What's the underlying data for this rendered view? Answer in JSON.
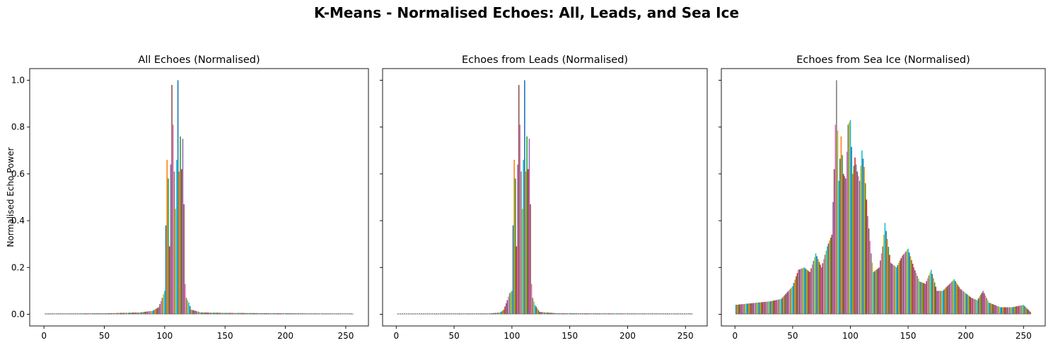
{
  "suptitle": "K-Means - Normalised Echoes: All, Leads, and Sea Ice",
  "ylabel": "Normalised Echo Power",
  "palette": [
    "#1f77b4",
    "#ff7f0e",
    "#2ca02c",
    "#d62728",
    "#9467bd",
    "#8c564b",
    "#e377c2",
    "#7f7f7f",
    "#bcbd22",
    "#17becf"
  ],
  "chart_data": [
    {
      "type": "line",
      "title": "All Echoes (Normalised)",
      "xlabel": "",
      "ylabel": "Normalised Echo Power",
      "xlim": [
        -11.8,
        268.8
      ],
      "ylim": [
        -0.05,
        1.05
      ],
      "xticks": [
        0,
        50,
        100,
        150,
        200,
        250
      ],
      "yticks": [
        0.0,
        0.2,
        0.4,
        0.6,
        0.8,
        1.0
      ],
      "grid": false,
      "x": [
        1,
        256
      ],
      "profile": [
        [
          0,
          0.002
        ],
        [
          50,
          0.004
        ],
        [
          80,
          0.008
        ],
        [
          90,
          0.015
        ],
        [
          95,
          0.03
        ],
        [
          98,
          0.07
        ],
        [
          100,
          0.1
        ],
        [
          102,
          0.66
        ],
        [
          103,
          0.58
        ],
        [
          104,
          0.29
        ],
        [
          105,
          0.64
        ],
        [
          106,
          0.98
        ],
        [
          107,
          0.81
        ],
        [
          108,
          0.61
        ],
        [
          109,
          0.45
        ],
        [
          110,
          0.66
        ],
        [
          111,
          1.0
        ],
        [
          112,
          0.61
        ],
        [
          113,
          0.76
        ],
        [
          114,
          0.62
        ],
        [
          115,
          0.75
        ],
        [
          116,
          0.47
        ],
        [
          117,
          0.13
        ],
        [
          118,
          0.07
        ],
        [
          120,
          0.05
        ],
        [
          122,
          0.02
        ],
        [
          130,
          0.008
        ],
        [
          150,
          0.006
        ],
        [
          200,
          0.004
        ],
        [
          256,
          0.002
        ]
      ]
    },
    {
      "type": "line",
      "title": "Echoes from Leads (Normalised)",
      "xlabel": "",
      "ylabel": "",
      "xlim": [
        -11.8,
        268.8
      ],
      "ylim": [
        -0.05,
        1.05
      ],
      "xticks": [
        0,
        50,
        100,
        150,
        200,
        250
      ],
      "yticks": [
        0.0,
        0.2,
        0.4,
        0.6,
        0.8,
        1.0
      ],
      "grid": false,
      "x": [
        1,
        256
      ],
      "profile": [
        [
          0,
          0.001
        ],
        [
          80,
          0.003
        ],
        [
          90,
          0.008
        ],
        [
          93,
          0.02
        ],
        [
          96,
          0.06
        ],
        [
          98,
          0.09
        ],
        [
          100,
          0.1
        ],
        [
          102,
          0.66
        ],
        [
          103,
          0.58
        ],
        [
          104,
          0.29
        ],
        [
          105,
          0.64
        ],
        [
          106,
          0.98
        ],
        [
          107,
          0.81
        ],
        [
          108,
          0.61
        ],
        [
          109,
          0.45
        ],
        [
          110,
          0.66
        ],
        [
          111,
          1.0
        ],
        [
          112,
          0.61
        ],
        [
          113,
          0.76
        ],
        [
          114,
          0.62
        ],
        [
          115,
          0.75
        ],
        [
          116,
          0.47
        ],
        [
          117,
          0.13
        ],
        [
          118,
          0.07
        ],
        [
          120,
          0.04
        ],
        [
          124,
          0.01
        ],
        [
          140,
          0.004
        ],
        [
          256,
          0.002
        ]
      ]
    },
    {
      "type": "line",
      "title": "Echoes from Sea Ice (Normalised)",
      "xlabel": "",
      "ylabel": "",
      "xlim": [
        -11.8,
        268.8
      ],
      "ylim": [
        -0.05,
        1.05
      ],
      "xticks": [
        0,
        50,
        100,
        150,
        200,
        250
      ],
      "yticks": [
        0.0,
        0.2,
        0.4,
        0.6,
        0.8,
        1.0
      ],
      "grid": false,
      "x": [
        1,
        256
      ],
      "profile": [
        [
          0,
          0.04
        ],
        [
          10,
          0.045
        ],
        [
          20,
          0.05
        ],
        [
          30,
          0.055
        ],
        [
          40,
          0.065
        ],
        [
          50,
          0.12
        ],
        [
          55,
          0.19
        ],
        [
          60,
          0.2
        ],
        [
          65,
          0.18
        ],
        [
          70,
          0.26
        ],
        [
          75,
          0.2
        ],
        [
          80,
          0.29
        ],
        [
          84,
          0.34
        ],
        [
          86,
          0.62
        ],
        [
          88,
          1.0
        ],
        [
          90,
          0.57
        ],
        [
          92,
          0.76
        ],
        [
          94,
          0.6
        ],
        [
          96,
          0.58
        ],
        [
          98,
          0.81
        ],
        [
          100,
          0.83
        ],
        [
          102,
          0.6
        ],
        [
          104,
          0.67
        ],
        [
          106,
          0.61
        ],
        [
          108,
          0.57
        ],
        [
          110,
          0.7
        ],
        [
          112,
          0.63
        ],
        [
          115,
          0.42
        ],
        [
          118,
          0.26
        ],
        [
          120,
          0.18
        ],
        [
          125,
          0.2
        ],
        [
          128,
          0.29
        ],
        [
          130,
          0.39
        ],
        [
          135,
          0.22
        ],
        [
          140,
          0.2
        ],
        [
          145,
          0.25
        ],
        [
          150,
          0.28
        ],
        [
          155,
          0.2
        ],
        [
          160,
          0.14
        ],
        [
          165,
          0.13
        ],
        [
          170,
          0.19
        ],
        [
          175,
          0.1
        ],
        [
          180,
          0.1
        ],
        [
          190,
          0.15
        ],
        [
          195,
          0.11
        ],
        [
          200,
          0.09
        ],
        [
          205,
          0.07
        ],
        [
          210,
          0.06
        ],
        [
          215,
          0.1
        ],
        [
          220,
          0.05
        ],
        [
          230,
          0.03
        ],
        [
          240,
          0.03
        ],
        [
          250,
          0.04
        ],
        [
          256,
          0.01
        ]
      ]
    }
  ]
}
